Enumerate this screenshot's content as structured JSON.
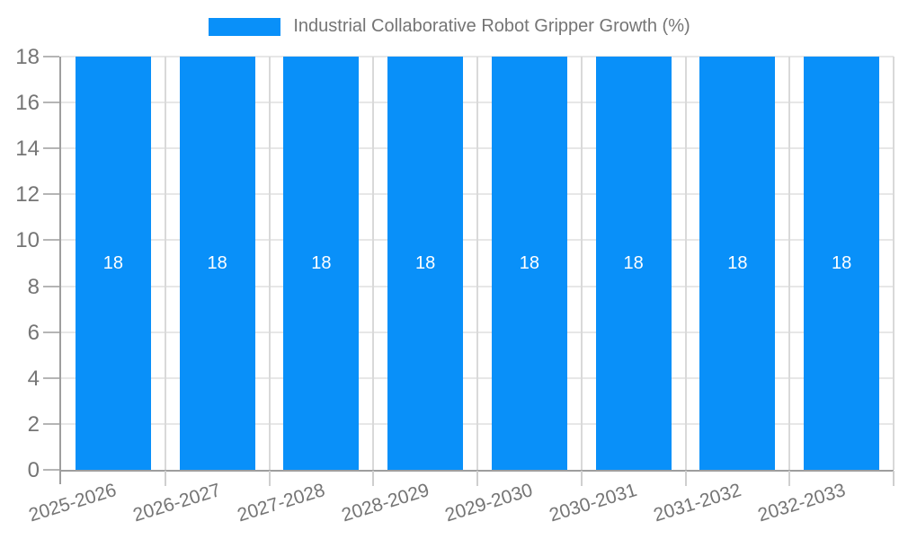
{
  "legend": {
    "label": "Industrial Collaborative Robot Gripper Growth (%)"
  },
  "chart_data": {
    "type": "bar",
    "title": "Industrial Collaborative Robot Gripper Growth (%)",
    "categories": [
      "2025-2026",
      "2026-2027",
      "2027-2028",
      "2028-2029",
      "2029-2030",
      "2030-2031",
      "2031-2032",
      "2032-2033"
    ],
    "values": [
      18,
      18,
      18,
      18,
      18,
      18,
      18,
      18
    ],
    "bar_value_labels": [
      "18",
      "18",
      "18",
      "18",
      "18",
      "18",
      "18",
      "18"
    ],
    "xlabel": "",
    "ylabel": "",
    "ylim": [
      0,
      18
    ],
    "yticks": [
      0,
      2,
      4,
      6,
      8,
      10,
      12,
      14,
      16,
      18
    ],
    "grid": true,
    "legend_position": "top",
    "colors": {
      "bar": "#0990f9",
      "bar_label": "#ffffff",
      "axis_line": "#9e9e9e",
      "gridline_h": "#e7e7e7",
      "gridline_v": "#d9d9d9",
      "y_tick_mark": "#b5b5b5",
      "x_tick_mark": "#cfcfcf",
      "text": "#757575",
      "background": "#ffffff"
    }
  }
}
